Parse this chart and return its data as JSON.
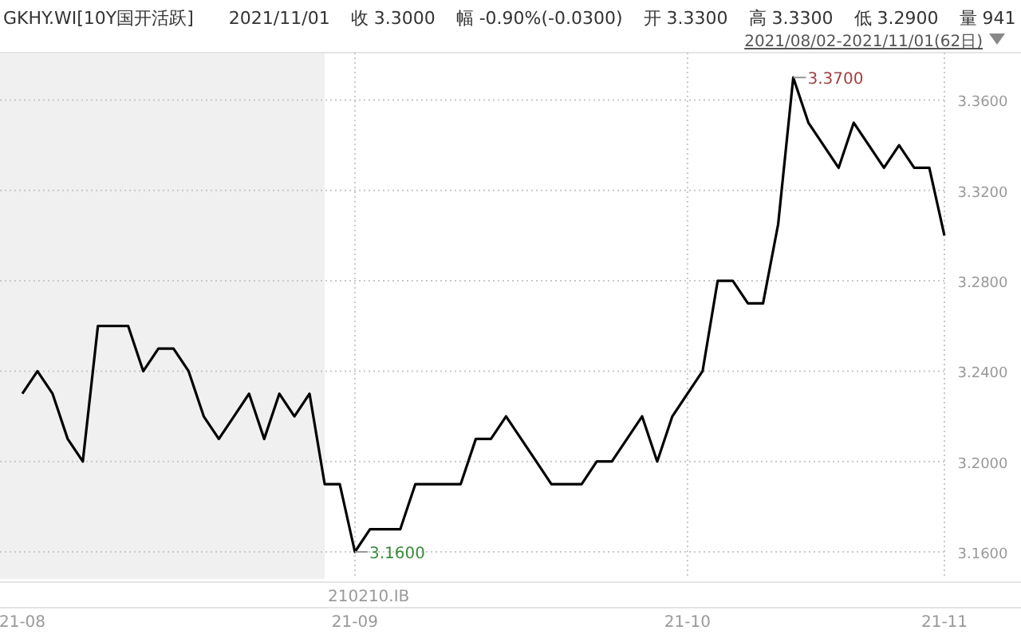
{
  "chart_data": {
    "type": "line",
    "title": "GKHY.WI[10Y国开活跃]",
    "categories": [
      "21-08",
      null,
      null,
      null,
      null,
      null,
      null,
      null,
      null,
      null,
      null,
      null,
      null,
      null,
      null,
      null,
      null,
      null,
      null,
      null,
      null,
      null,
      "21-09",
      null,
      null,
      null,
      null,
      null,
      null,
      null,
      null,
      null,
      null,
      null,
      null,
      null,
      null,
      null,
      null,
      null,
      null,
      null,
      null,
      null,
      "21-10",
      null,
      null,
      null,
      null,
      null,
      null,
      null,
      null,
      null,
      null,
      null,
      null,
      null,
      null,
      null,
      null,
      "21-11"
    ],
    "series": [
      {
        "color": "#000000",
        "values": [
          3.23,
          3.24,
          3.23,
          3.21,
          3.2,
          3.26,
          3.26,
          3.26,
          3.24,
          3.25,
          3.25,
          3.24,
          3.22,
          3.21,
          3.22,
          3.23,
          3.21,
          3.23,
          3.22,
          3.23,
          3.19,
          3.19,
          3.16,
          3.17,
          3.17,
          3.17,
          3.19,
          3.19,
          3.19,
          3.19,
          3.21,
          3.21,
          3.22,
          3.21,
          3.2,
          3.19,
          3.19,
          3.19,
          3.2,
          3.2,
          3.21,
          3.22,
          3.2,
          3.22,
          3.23,
          3.24,
          3.28,
          3.28,
          3.27,
          3.27,
          3.305,
          3.37,
          3.35,
          3.34,
          3.33,
          3.35,
          3.34,
          3.33,
          3.34,
          3.33,
          3.33,
          3.3
        ]
      }
    ],
    "ylim": [
      3.148,
      3.381
    ],
    "yticks": [
      {
        "value": 3.16,
        "label": "3.1600"
      },
      {
        "value": 3.2,
        "label": "3.2000"
      },
      {
        "value": 3.24,
        "label": "3.2400"
      },
      {
        "value": 3.28,
        "label": "3.2800"
      },
      {
        "value": 3.32,
        "label": "3.3200"
      },
      {
        "value": 3.36,
        "label": "3.3600"
      }
    ],
    "grid": true,
    "marker": "none",
    "line_style": "solid",
    "annotations": [
      "2021/11/01",
      "收 3.3000",
      "幅 -0.90%(-0.0300)",
      "开 3.3300",
      "高 3.3300",
      "低 3.2900",
      "量 941",
      "2021/08/02-2021/11/01(62日)",
      "210210.IB",
      "3.3700",
      "3.1600"
    ]
  }
}
